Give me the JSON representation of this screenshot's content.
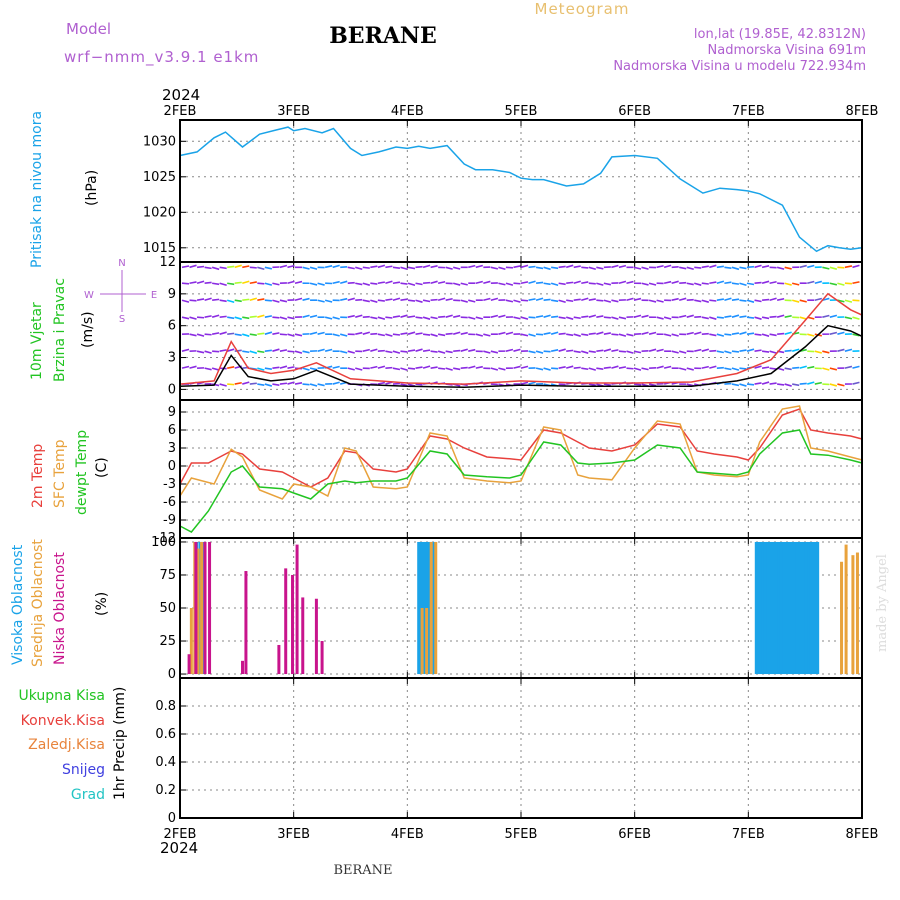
{
  "header": {
    "model_label": "Model",
    "model_name": "wrf−nmm_v3.9.1  e1km",
    "station": "BERANE",
    "meteogram_label": "Meteogram",
    "lonlat": "lon,lat (19.85E, 42.8312N)",
    "elevation": "Nadmorska Visina 691m",
    "model_elevation": "Nadmorska Visina u modelu 722.934m",
    "year": "2024",
    "footer_station": "BERANE",
    "credit": "made by Angel"
  },
  "colors": {
    "pressure": "#1aa3e8",
    "temp_2m": "#e8403c",
    "temp_sfc": "#e8a23c",
    "dewpoint": "#22c422",
    "high_cloud": "#1aa3e8",
    "mid_cloud": "#e8a23c",
    "low_cloud": "#c8148c",
    "wind_speed_line": "#000000",
    "wind_gust_line": "#e8403c"
  },
  "chart_data": [
    {
      "type": "line",
      "id": "pressure",
      "ylabel_lines": [
        "Pritisak na nivou mora",
        "(hPa)"
      ],
      "ylim": [
        1013,
        1033
      ],
      "yticks": [
        1015,
        1020,
        1025,
        1030
      ],
      "xlim": [
        0,
        6
      ],
      "xticks": [
        "2FEB",
        "3FEB",
        "4FEB",
        "5FEB",
        "6FEB",
        "7FEB",
        "8FEB"
      ],
      "grid": true,
      "series": [
        {
          "key": "pressure",
          "x": [
            0,
            0.15,
            0.3,
            0.4,
            0.55,
            0.7,
            0.85,
            0.95,
            1.0,
            1.1,
            1.25,
            1.35,
            1.5,
            1.6,
            1.75,
            1.9,
            2.0,
            2.1,
            2.2,
            2.35,
            2.5,
            2.6,
            2.75,
            2.9,
            3.0,
            3.1,
            3.2,
            3.4,
            3.55,
            3.7,
            3.8,
            4.0,
            4.2,
            4.4,
            4.6,
            4.75,
            4.9,
            5.0,
            5.1,
            5.3,
            5.45,
            5.6,
            5.7,
            5.8,
            5.9,
            6.0
          ],
          "values": [
            1028.0,
            1028.5,
            1030.5,
            1031.3,
            1029.2,
            1031.0,
            1031.6,
            1032.0,
            1031.5,
            1031.8,
            1031.2,
            1031.8,
            1029.0,
            1028.0,
            1028.5,
            1029.2,
            1029.0,
            1029.3,
            1029.0,
            1029.4,
            1026.8,
            1026.0,
            1026.0,
            1025.6,
            1024.8,
            1024.6,
            1024.6,
            1023.7,
            1024.0,
            1025.5,
            1027.8,
            1028.0,
            1027.6,
            1024.7,
            1022.7,
            1023.4,
            1023.2,
            1023.0,
            1022.6,
            1021.0,
            1016.5,
            1014.5,
            1015.3,
            1015.0,
            1014.8,
            1015.0
          ]
        }
      ]
    },
    {
      "type": "line",
      "id": "wind",
      "ylabel_lines": [
        "10m Vjetar",
        "Brzina i Pravac",
        "(m/s)"
      ],
      "ylim": [
        -1,
        12
      ],
      "yticks": [
        0,
        3,
        6,
        9,
        12
      ],
      "xlim": [
        0,
        6
      ],
      "grid": true,
      "compass": [
        "N",
        "E",
        "S",
        "W"
      ],
      "barb_levels": [
        0.5,
        2,
        3.6,
        5.2,
        6.8,
        8.4,
        10,
        11.5
      ],
      "series": [
        {
          "key": "wind_speed_line",
          "x": [
            0,
            0.3,
            0.45,
            0.6,
            0.8,
            1.0,
            1.2,
            1.5,
            2.0,
            2.5,
            3.0,
            3.5,
            4.0,
            4.5,
            4.9,
            5.2,
            5.5,
            5.7,
            5.9,
            6.0
          ],
          "values": [
            0.3,
            0.4,
            3.2,
            1.2,
            0.8,
            1.0,
            1.8,
            0.5,
            0.3,
            0.2,
            0.4,
            0.3,
            0.3,
            0.3,
            0.8,
            1.5,
            4.0,
            6.0,
            5.5,
            5.0
          ]
        },
        {
          "key": "wind_gust_line",
          "x": [
            0,
            0.3,
            0.45,
            0.6,
            0.8,
            1.0,
            1.2,
            1.5,
            2.0,
            2.5,
            3.0,
            3.5,
            4.0,
            4.5,
            4.9,
            5.2,
            5.5,
            5.7,
            5.9,
            6.0
          ],
          "values": [
            0.5,
            0.8,
            4.5,
            2.0,
            1.5,
            1.8,
            2.5,
            1.0,
            0.6,
            0.5,
            0.8,
            0.6,
            0.6,
            0.7,
            1.5,
            2.8,
            6.5,
            9.0,
            7.5,
            7.0
          ]
        }
      ]
    },
    {
      "type": "line",
      "id": "temperature",
      "ylabel_lines": [
        "2m Temp",
        "SFC Temp",
        "dewpt Temp",
        "(C)"
      ],
      "ylim": [
        -12,
        11
      ],
      "yticks": [
        -12,
        -9,
        -6,
        -3,
        0,
        3,
        6,
        9
      ],
      "xlim": [
        0,
        6
      ],
      "grid": true,
      "series": [
        {
          "key": "temp_2m",
          "name": "2m Temp",
          "x": [
            0,
            0.1,
            0.25,
            0.45,
            0.55,
            0.7,
            0.9,
            1.0,
            1.15,
            1.3,
            1.45,
            1.55,
            1.7,
            1.9,
            2.0,
            2.2,
            2.35,
            2.5,
            2.7,
            2.9,
            3.0,
            3.2,
            3.35,
            3.5,
            3.6,
            3.8,
            4.0,
            4.2,
            4.4,
            4.55,
            4.7,
            4.9,
            5.0,
            5.1,
            5.3,
            5.45,
            5.55,
            5.7,
            5.9,
            6.0
          ],
          "values": [
            -3,
            0.5,
            0.5,
            2.5,
            2.0,
            -0.5,
            -1.0,
            -2.0,
            -3.5,
            -2.0,
            2.5,
            2.2,
            -0.5,
            -1.0,
            -0.5,
            5.0,
            4.5,
            3.0,
            1.5,
            1.2,
            1.0,
            6.0,
            5.5,
            4.0,
            3.0,
            2.5,
            3.5,
            7.0,
            6.5,
            2.5,
            2.0,
            1.5,
            1.0,
            3.0,
            8.5,
            9.5,
            6.0,
            5.5,
            5.0,
            4.5
          ]
        },
        {
          "key": "temp_sfc",
          "name": "SFC Temp",
          "x": [
            0,
            0.1,
            0.2,
            0.3,
            0.45,
            0.55,
            0.7,
            0.9,
            1.0,
            1.15,
            1.3,
            1.45,
            1.55,
            1.7,
            1.9,
            2.0,
            2.2,
            2.35,
            2.5,
            2.7,
            2.9,
            3.0,
            3.2,
            3.35,
            3.5,
            3.6,
            3.8,
            4.0,
            4.2,
            4.4,
            4.55,
            4.7,
            4.9,
            5.0,
            5.1,
            5.3,
            5.45,
            5.55,
            5.7,
            5.9,
            6.0
          ],
          "values": [
            -5,
            -2.0,
            -2.5,
            -3.0,
            2.8,
            1.5,
            -4.0,
            -5.5,
            -3.0,
            -3.5,
            -5.0,
            3.0,
            2.5,
            -3.5,
            -3.8,
            -3.5,
            5.5,
            5.0,
            -2.0,
            -2.5,
            -2.8,
            -2.5,
            6.5,
            6.0,
            -1.5,
            -2.0,
            -2.3,
            3.0,
            7.5,
            7.0,
            -1.0,
            -1.5,
            -1.8,
            -1.5,
            4.0,
            9.5,
            10.0,
            3.0,
            2.5,
            1.5,
            1.0
          ]
        },
        {
          "key": "dewpoint",
          "name": "dewpt Temp",
          "x": [
            0,
            0.1,
            0.25,
            0.45,
            0.55,
            0.7,
            0.9,
            1.0,
            1.15,
            1.3,
            1.45,
            1.55,
            1.7,
            1.9,
            2.0,
            2.2,
            2.35,
            2.5,
            2.7,
            2.9,
            3.0,
            3.2,
            3.35,
            3.5,
            3.6,
            3.8,
            4.0,
            4.2,
            4.4,
            4.55,
            4.7,
            4.9,
            5.0,
            5.1,
            5.3,
            5.45,
            5.55,
            5.7,
            5.9,
            6.0
          ],
          "values": [
            -10,
            -11.0,
            -7.5,
            -1.0,
            0.0,
            -3.5,
            -3.8,
            -4.5,
            -5.5,
            -3.0,
            -2.5,
            -2.8,
            -2.5,
            -2.5,
            -2.0,
            2.5,
            2.0,
            -1.5,
            -1.8,
            -2.0,
            -1.5,
            4.0,
            3.5,
            0.5,
            0.3,
            0.5,
            1.0,
            3.5,
            3.0,
            -1.0,
            -1.2,
            -1.5,
            -1.0,
            2.0,
            5.5,
            6.0,
            2.0,
            1.8,
            1.0,
            0.5
          ]
        }
      ]
    },
    {
      "type": "bar",
      "id": "cloud",
      "ylabel_lines": [
        "Visoka Oblacnost",
        "Srednja Oblacnost",
        "Niska Oblacnost",
        "(%)"
      ],
      "ylim": [
        -3,
        103
      ],
      "yticks": [
        0,
        25,
        50,
        75,
        100
      ],
      "xlim": [
        0,
        6
      ],
      "grid": true,
      "series": [
        {
          "key": "high_cloud",
          "name": "Visoka Oblacnost",
          "x": [
            0.15,
            0.18,
            0.2,
            2.1,
            2.12,
            2.14,
            2.16,
            2.18,
            2.2,
            2.22,
            2.24,
            5.07,
            5.09,
            5.11,
            5.13,
            5.15,
            5.17,
            5.19,
            5.21,
            5.23,
            5.25,
            5.27,
            5.29,
            5.31,
            5.33,
            5.35,
            5.37,
            5.39,
            5.41,
            5.43,
            5.45,
            5.47,
            5.49,
            5.51,
            5.53,
            5.55,
            5.57,
            5.59,
            5.61
          ],
          "values": [
            100,
            100,
            100,
            100,
            100,
            100,
            100,
            100,
            100,
            100,
            100,
            100,
            100,
            100,
            100,
            100,
            100,
            100,
            100,
            100,
            100,
            100,
            100,
            100,
            100,
            100,
            100,
            100,
            100,
            100,
            100,
            100,
            100,
            100,
            100,
            100,
            100,
            100,
            100
          ]
        },
        {
          "key": "mid_cloud",
          "name": "Srednja Oblacnost",
          "x": [
            0.1,
            0.13,
            0.16,
            0.19,
            2.13,
            2.17,
            2.21,
            2.25,
            5.82,
            5.86,
            5.92,
            5.96
          ],
          "values": [
            50,
            100,
            95,
            100,
            50,
            50,
            100,
            100,
            85,
            98,
            90,
            92
          ]
        },
        {
          "key": "low_cloud",
          "name": "Niska Oblacnost",
          "x": [
            0.08,
            0.14,
            0.22,
            0.26,
            0.5,
            0.55,
            0.58,
            0.87,
            0.93,
            0.99,
            1.03,
            1.08,
            1.2,
            1.25
          ],
          "values": [
            15,
            100,
            100,
            100,
            0,
            10,
            78,
            22,
            80,
            75,
            98,
            58,
            57,
            25
          ]
        }
      ]
    },
    {
      "type": "line",
      "id": "precip",
      "ylabel_lines": [
        "1hr Precip (mm)"
      ],
      "legend": [
        "Ukupna Kisa",
        "Konvek.Kisa",
        "Zaledj.Kisa",
        "Snijeg",
        "Grad"
      ],
      "legend_colors": [
        "#22c422",
        "#e8403c",
        "#e8843c",
        "#4040e0",
        "#22c4c4"
      ],
      "ylim": [
        0,
        1.0
      ],
      "yticks": [
        0,
        0.2,
        0.4,
        0.6,
        0.8
      ],
      "xlim": [
        0,
        6
      ],
      "xticks": [
        "2FEB",
        "3FEB",
        "4FEB",
        "5FEB",
        "6FEB",
        "7FEB",
        "8FEB"
      ],
      "grid": true,
      "series": [
        {
          "key": "total_rain",
          "x": [
            0,
            6
          ],
          "values": [
            0,
            0
          ]
        }
      ]
    }
  ]
}
